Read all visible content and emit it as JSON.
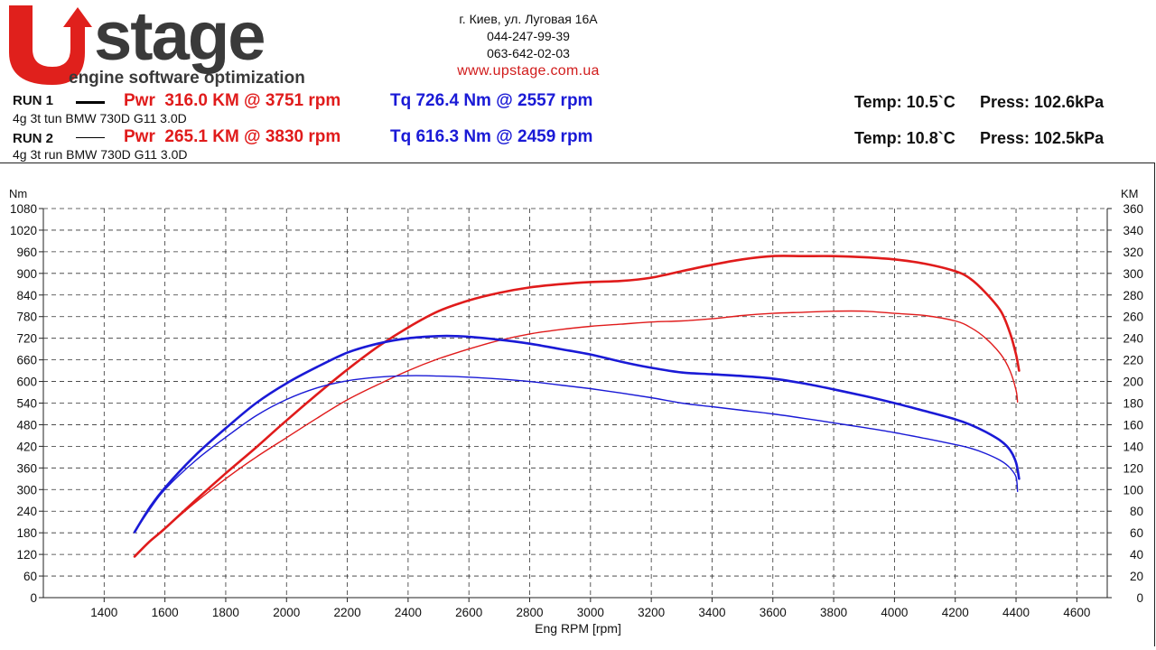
{
  "header": {
    "logo_text": "stage",
    "logo_tagline": "engine software optimization",
    "address": "г. Киев, ул. Луговая 16А",
    "phone1": "044-247-99-39",
    "phone2": "063-642-02-03",
    "url": "www.upstage.com.ua"
  },
  "runs": [
    {
      "label": "RUN 1",
      "description": "4g 3t tun BMW 730D G11 3.0D",
      "power_text": "Pwr  316.0 KM @ 3751 rpm",
      "torque_text": "Tq 726.4 Nm @ 2557 rpm",
      "temp_text": "Temp: 10.5`C",
      "press_text": "Press: 102.6kPa"
    },
    {
      "label": "RUN 2",
      "description": "4g 3t run BMW 730D G11 3.0D",
      "power_text": "Pwr  265.1 KM @ 3830 rpm",
      "torque_text": "Tq 616.3 Nm @ 2459 rpm",
      "temp_text": "Temp: 10.8`C",
      "press_text": "Press: 102.5kPa"
    }
  ],
  "colors": {
    "power": "#e01b1b",
    "torque": "#1a1ad6",
    "grid": "#333333",
    "logo_red": "#e0201c",
    "logo_grey": "#3a3a3a"
  },
  "chart_data": {
    "type": "line",
    "xlabel": "Eng RPM [rpm]",
    "ylabel_left": "Nm",
    "ylabel_right": "KM",
    "xlim": [
      1200,
      4700
    ],
    "ylim_left": [
      0,
      1080
    ],
    "ylim_right": [
      0,
      360
    ],
    "x_ticks": [
      1400,
      1600,
      1800,
      2000,
      2200,
      2400,
      2600,
      2800,
      3000,
      3200,
      3400,
      3600,
      3800,
      4000,
      4200,
      4400,
      4600
    ],
    "y_ticks_left": [
      0,
      60,
      120,
      180,
      240,
      300,
      360,
      420,
      480,
      540,
      600,
      660,
      720,
      780,
      840,
      900,
      960,
      1020,
      1080
    ],
    "y_ticks_right": [
      0,
      20,
      40,
      60,
      80,
      100,
      120,
      140,
      160,
      180,
      200,
      220,
      240,
      260,
      280,
      300,
      320,
      340,
      360
    ],
    "grid": true,
    "series": [
      {
        "axis": "right",
        "color": "#e01b1b",
        "width": 2.6,
        "x": [
          1500,
          1550,
          1600,
          1700,
          1800,
          1900,
          2000,
          2100,
          2200,
          2300,
          2400,
          2500,
          2600,
          2700,
          2800,
          2900,
          3000,
          3100,
          3200,
          3300,
          3400,
          3500,
          3600,
          3700,
          3800,
          3900,
          4000,
          4100,
          4200,
          4250,
          4300,
          4350,
          4380,
          4400,
          4410
        ],
        "y": [
          38,
          52,
          64,
          90,
          115,
          139,
          164,
          188,
          211,
          232,
          250,
          265,
          275,
          282,
          287,
          290,
          292,
          293,
          296,
          302,
          308,
          313,
          316,
          316,
          316,
          315,
          313,
          309,
          302,
          295,
          282,
          265,
          245,
          225,
          210
        ]
      },
      {
        "axis": "right",
        "color": "#e01b1b",
        "width": 1.4,
        "x": [
          1500,
          1550,
          1600,
          1700,
          1800,
          1900,
          2000,
          2100,
          2200,
          2300,
          2400,
          2500,
          2600,
          2700,
          2800,
          2900,
          3000,
          3100,
          3200,
          3300,
          3400,
          3500,
          3600,
          3700,
          3800,
          3900,
          4000,
          4100,
          4200,
          4250,
          4300,
          4350,
          4380,
          4400,
          4405
        ],
        "y": [
          38,
          52,
          64,
          88,
          110,
          130,
          148,
          166,
          183,
          197,
          210,
          221,
          230,
          238,
          244,
          248,
          251,
          253,
          255,
          256,
          258,
          261,
          263,
          264,
          265,
          265,
          263,
          261,
          256,
          250,
          240,
          225,
          210,
          192,
          181
        ]
      },
      {
        "axis": "left",
        "color": "#1a1ad6",
        "width": 2.6,
        "x": [
          1500,
          1550,
          1600,
          1700,
          1800,
          1900,
          2000,
          2100,
          2200,
          2300,
          2400,
          2500,
          2557,
          2600,
          2700,
          2800,
          2900,
          3000,
          3100,
          3200,
          3300,
          3400,
          3500,
          3600,
          3700,
          3800,
          3900,
          4000,
          4100,
          4200,
          4250,
          4300,
          4350,
          4380,
          4400,
          4410
        ],
        "y": [
          182,
          250,
          305,
          395,
          470,
          540,
          595,
          640,
          680,
          705,
          720,
          726,
          726,
          724,
          716,
          705,
          690,
          675,
          655,
          638,
          625,
          620,
          615,
          608,
          595,
          578,
          560,
          540,
          518,
          495,
          480,
          460,
          435,
          410,
          375,
          330
        ]
      },
      {
        "axis": "left",
        "color": "#1a1ad6",
        "width": 1.4,
        "x": [
          1500,
          1550,
          1600,
          1700,
          1800,
          1900,
          2000,
          2100,
          2200,
          2300,
          2400,
          2459,
          2500,
          2600,
          2700,
          2800,
          2900,
          3000,
          3100,
          3200,
          3300,
          3400,
          3500,
          3600,
          3700,
          3800,
          3900,
          4000,
          4100,
          4200,
          4250,
          4300,
          4350,
          4380,
          4400,
          4405
        ],
        "y": [
          182,
          245,
          300,
          380,
          445,
          505,
          550,
          582,
          602,
          612,
          616,
          616,
          615,
          612,
          607,
          600,
          590,
          580,
          568,
          555,
          540,
          530,
          520,
          510,
          498,
          485,
          472,
          458,
          442,
          425,
          415,
          400,
          380,
          360,
          335,
          295
        ]
      }
    ]
  }
}
